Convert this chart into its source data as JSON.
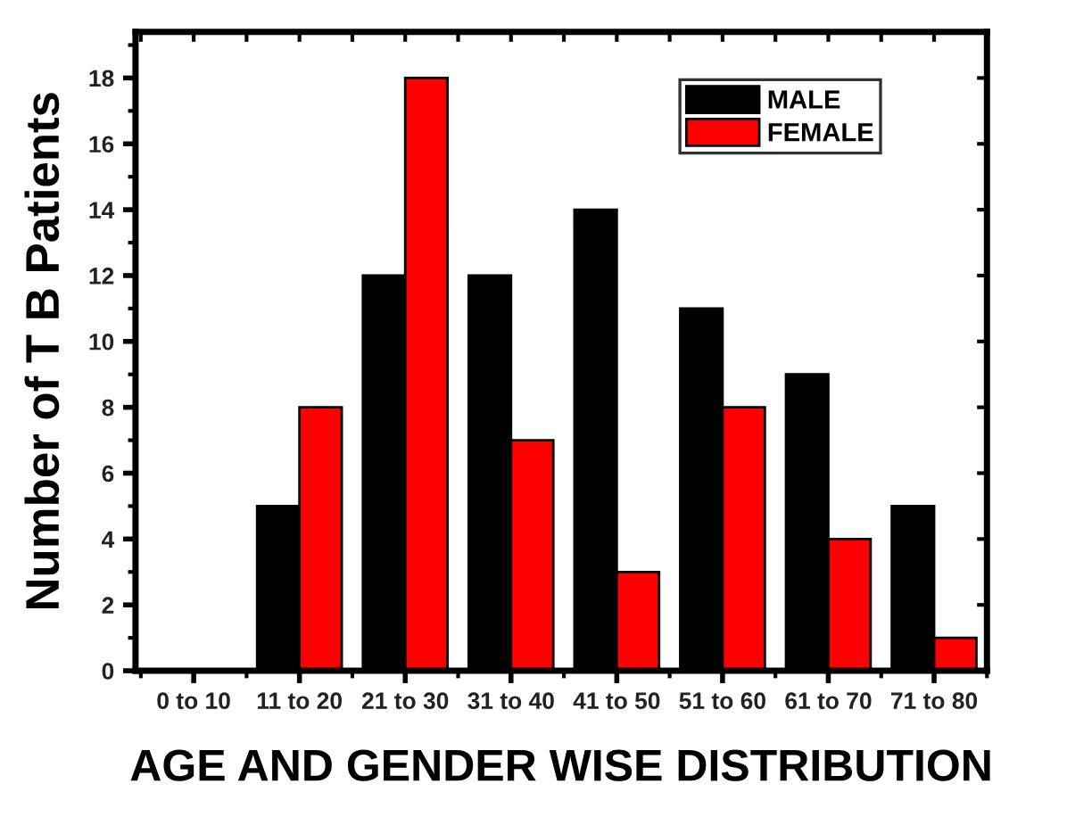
{
  "chart_data": {
    "type": "bar",
    "xlabel": "AGE AND GENDER WISE DISTRIBUTION",
    "ylabel": "Number of T B Patients",
    "categories": [
      "0 to 10",
      "11 to 20",
      "21 to 30",
      "31 to 40",
      "41 to 50",
      "51 to 60",
      "61 to 70",
      "71 to 80"
    ],
    "series": [
      {
        "name": "MALE",
        "color": "#000000",
        "values": [
          0,
          5,
          12,
          12,
          14,
          11,
          9,
          5
        ]
      },
      {
        "name": "FEMALE",
        "color": "#ff0000",
        "values": [
          0,
          8,
          18,
          7,
          3,
          8,
          4,
          1
        ]
      }
    ],
    "ylim": [
      0,
      19.4
    ],
    "yticks": [
      0,
      2,
      4,
      6,
      8,
      10,
      12,
      14,
      16,
      18
    ],
    "grid": false,
    "legend": "top right"
  }
}
